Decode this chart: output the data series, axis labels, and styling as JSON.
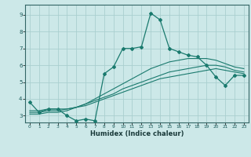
{
  "xlabel": "Humidex (Indice chaleur)",
  "bg_color": "#cce8e8",
  "grid_color": "#aacfcf",
  "line_color": "#1a7a6e",
  "xlim": [
    -0.5,
    23.5
  ],
  "ylim": [
    2.6,
    9.6
  ],
  "series_main": {
    "x": [
      0,
      1,
      2,
      3,
      4,
      5,
      6,
      7,
      8,
      9,
      10,
      11,
      12,
      13,
      14,
      15,
      16,
      17,
      18,
      19,
      20,
      21,
      22,
      23
    ],
    "y": [
      3.8,
      3.2,
      3.4,
      3.4,
      3.0,
      2.7,
      2.8,
      2.7,
      5.5,
      5.9,
      7.0,
      7.0,
      7.1,
      9.1,
      8.7,
      7.0,
      6.8,
      6.6,
      6.5,
      6.0,
      5.3,
      4.8,
      5.4,
      5.4
    ]
  },
  "series_smooth": [
    {
      "x": [
        0,
        1,
        2,
        3,
        4,
        5,
        6,
        7,
        8,
        9,
        10,
        11,
        12,
        13,
        14,
        15,
        16,
        17,
        18,
        19,
        20,
        21,
        22,
        23
      ],
      "y": [
        3.3,
        3.3,
        3.4,
        3.4,
        3.4,
        3.5,
        3.6,
        3.8,
        4.0,
        4.2,
        4.4,
        4.6,
        4.8,
        5.0,
        5.2,
        5.3,
        5.4,
        5.5,
        5.6,
        5.7,
        5.8,
        5.7,
        5.6,
        5.5
      ]
    },
    {
      "x": [
        0,
        1,
        2,
        3,
        4,
        5,
        6,
        7,
        8,
        9,
        10,
        11,
        12,
        13,
        14,
        15,
        16,
        17,
        18,
        19,
        20,
        21,
        22,
        23
      ],
      "y": [
        3.2,
        3.2,
        3.3,
        3.3,
        3.4,
        3.5,
        3.7,
        3.9,
        4.1,
        4.3,
        4.6,
        4.8,
        5.0,
        5.2,
        5.4,
        5.6,
        5.7,
        5.8,
        5.9,
        6.0,
        6.0,
        5.9,
        5.7,
        5.6
      ]
    },
    {
      "x": [
        0,
        1,
        2,
        3,
        4,
        5,
        6,
        7,
        8,
        9,
        10,
        11,
        12,
        13,
        14,
        15,
        16,
        17,
        18,
        19,
        20,
        21,
        22,
        23
      ],
      "y": [
        3.1,
        3.1,
        3.2,
        3.2,
        3.3,
        3.5,
        3.7,
        4.0,
        4.3,
        4.6,
        4.9,
        5.2,
        5.5,
        5.8,
        6.0,
        6.2,
        6.3,
        6.4,
        6.4,
        6.4,
        6.3,
        6.1,
        5.9,
        5.8
      ]
    }
  ]
}
